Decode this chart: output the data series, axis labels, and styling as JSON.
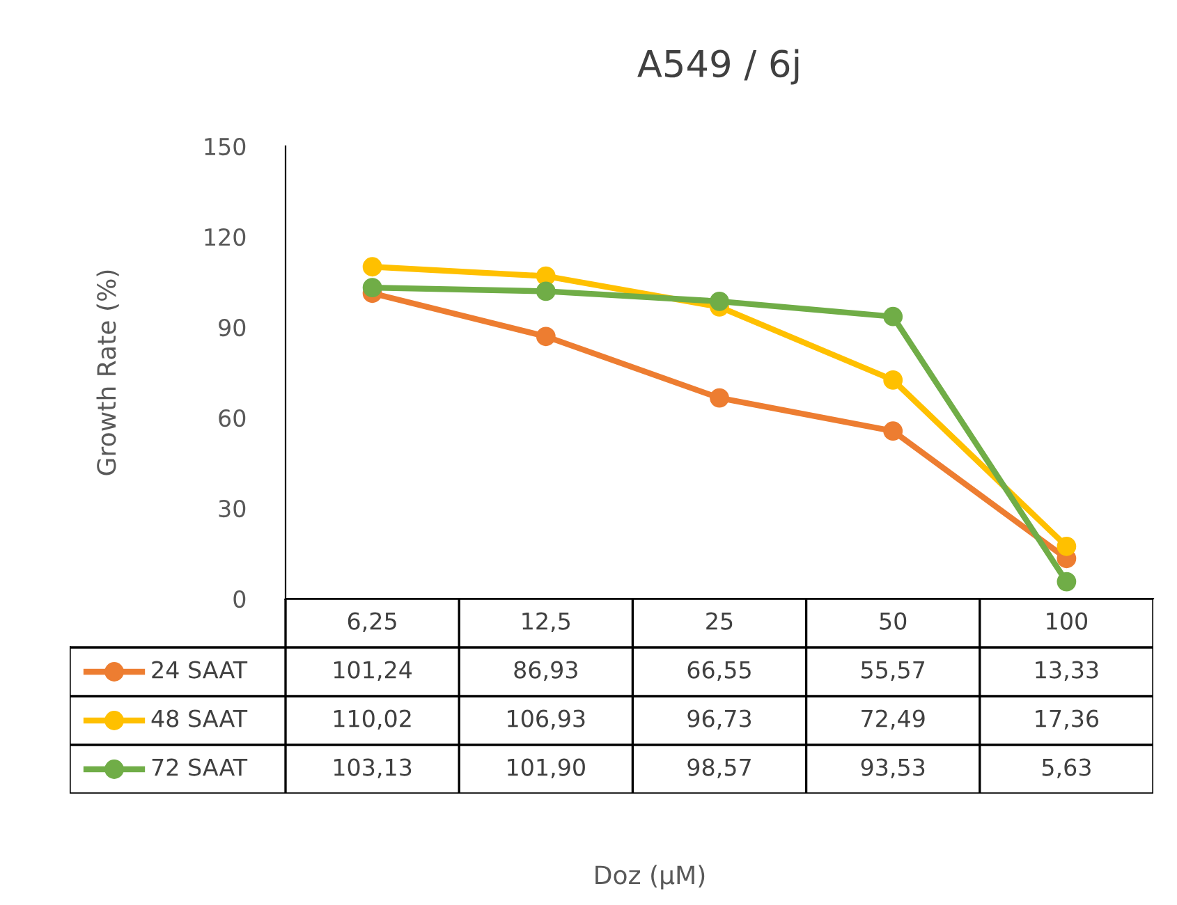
{
  "chart_data": {
    "type": "line",
    "title": "A549 / 6j",
    "annotations": [
      "Doz (µM)"
    ],
    "ylabel": "Growth Rate (%)",
    "categories": [
      "6,25",
      "12,5",
      "25",
      "50",
      "100"
    ],
    "ylim": [
      0,
      150
    ],
    "yticks": [
      0,
      30,
      60,
      90,
      120,
      150
    ],
    "grid": false,
    "legend": "bottom",
    "marker": "circle",
    "line_style": "solid",
    "series": [
      {
        "name": "24 SAAT",
        "color": "#ed7d31",
        "values": [
          101.24,
          86.93,
          66.55,
          55.57,
          13.33
        ],
        "value_labels": [
          "101,24",
          "86,93",
          "66,55",
          "55,57",
          "13,33"
        ]
      },
      {
        "name": "48 SAAT",
        "color": "#ffc000",
        "values": [
          110.02,
          106.93,
          96.73,
          72.49,
          17.36
        ],
        "value_labels": [
          "110,02",
          "106,93",
          "96,73",
          "72,49",
          "17,36"
        ]
      },
      {
        "name": "72 SAAT",
        "color": "#70ad47",
        "values": [
          103.13,
          101.9,
          98.57,
          93.53,
          5.63
        ],
        "value_labels": [
          "103,13",
          "101,90",
          "98,57",
          "93,53",
          "5,63"
        ]
      }
    ]
  }
}
